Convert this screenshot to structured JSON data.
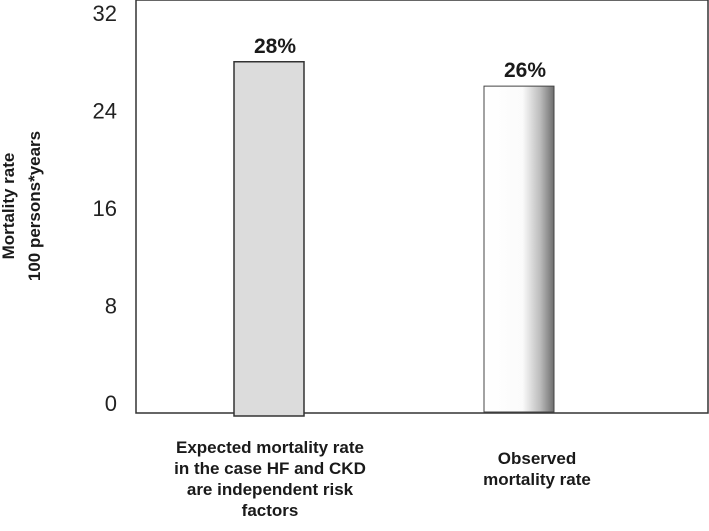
{
  "chart_data": {
    "type": "bar",
    "title": "",
    "categories": [
      "Expected mortality rate\nin the case HF  and CKD\nare independent risk\nfactors",
      "Observed\nmortality rate"
    ],
    "values": [
      28,
      26
    ],
    "data_labels": [
      "28%",
      "26%"
    ],
    "xlabel": "",
    "ylabel": [
      "Mortality  rate",
      "100 persons*years"
    ],
    "ylim": [
      0,
      32
    ],
    "yticks": [
      "0",
      "8",
      "16",
      "24",
      "32"
    ],
    "grid": false,
    "colors": {
      "bar_expected": "#dcdcdc",
      "bar_observed": "#ffffff",
      "axis": "#333333"
    }
  }
}
